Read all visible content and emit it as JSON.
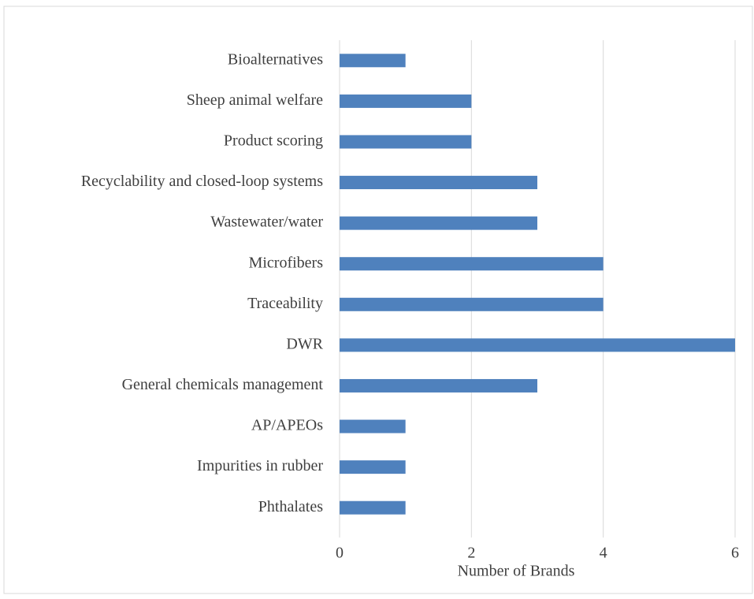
{
  "chart_data": {
    "type": "bar",
    "orientation": "horizontal",
    "categories": [
      "Bioalternatives",
      "Sheep animal welfare",
      "Product scoring",
      "Recyclability and closed-loop systems",
      "Wastewater/water",
      "Microfibers",
      "Traceability",
      "DWR",
      "General chemicals management",
      "AP/APEOs",
      "Impurities in rubber",
      "Phthalates"
    ],
    "values": [
      1,
      2,
      2,
      3,
      3,
      4,
      4,
      6,
      3,
      1,
      1,
      1
    ],
    "color": "#4f81bd",
    "x_label": "Number of Brands",
    "xlim": [
      0,
      6
    ],
    "xticks": [
      0,
      2,
      4,
      6
    ],
    "grid": true
  }
}
